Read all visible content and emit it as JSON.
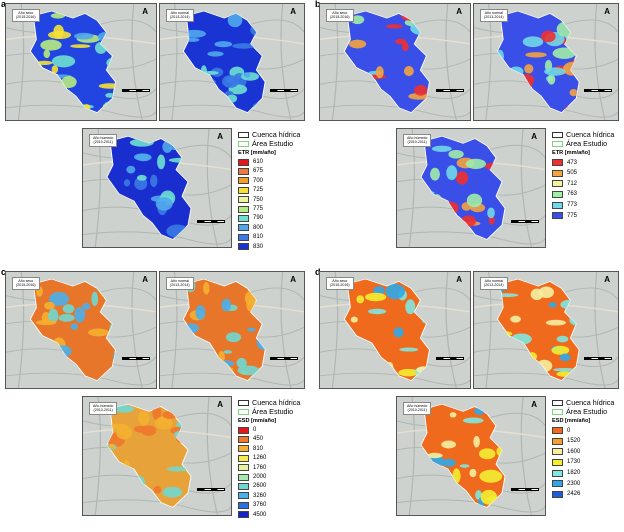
{
  "panels": [
    {
      "letter": "a",
      "legend": {
        "outline_label": "Cuenca hídrica",
        "area_label": "Área Estudio",
        "title": "ETR [mm/año]",
        "classes": [
          {
            "value": "610",
            "color": "#e8141c"
          },
          {
            "value": "675",
            "color": "#f0783c"
          },
          {
            "value": "700",
            "color": "#f4a028"
          },
          {
            "value": "725",
            "color": "#f6e234"
          },
          {
            "value": "750",
            "color": "#ecf5a0"
          },
          {
            "value": "775",
            "color": "#b6ec80"
          },
          {
            "value": "790",
            "color": "#6ee0d0"
          },
          {
            "value": "800",
            "color": "#50a8ec"
          },
          {
            "value": "810",
            "color": "#3a7ae4"
          },
          {
            "value": "830",
            "color": "#1434d6"
          }
        ]
      },
      "maps": [
        {
          "label_line1": "Año seco",
          "label_line2": "(2015-2016)"
        },
        {
          "label_line1": "Año normal",
          "label_line2": "(2013-2014)"
        },
        {
          "label_line1": "Año húmedo",
          "label_line2": "(2010-2011)"
        }
      ]
    },
    {
      "letter": "b",
      "legend": {
        "outline_label": "Cuenca hídrica",
        "area_label": "Área Estudio",
        "title": "ETR [mm/año]",
        "classes": [
          {
            "value": "473",
            "color": "#ee3030"
          },
          {
            "value": "505",
            "color": "#f4a440"
          },
          {
            "value": "712",
            "color": "#f6f2a0"
          },
          {
            "value": "763",
            "color": "#a0eca8"
          },
          {
            "value": "773",
            "color": "#70d8e8"
          },
          {
            "value": "775",
            "color": "#3a4ee8"
          }
        ]
      },
      "maps": [
        {
          "label_line1": "Año seco",
          "label_line2": "(2015-2016)"
        },
        {
          "label_line1": "Año normal",
          "label_line2": "(2013-2014)"
        },
        {
          "label_line1": "Año húmedo",
          "label_line2": "(2010-2011)"
        }
      ]
    },
    {
      "letter": "c",
      "legend": {
        "outline_label": "Cuenca hídrica",
        "area_label": "Área Estudio",
        "title": "ESD [mm/año]",
        "classes": [
          {
            "value": "0",
            "color": "#e8141c"
          },
          {
            "value": "450",
            "color": "#f0782c"
          },
          {
            "value": "810",
            "color": "#f4b030"
          },
          {
            "value": "1260",
            "color": "#f6ec50"
          },
          {
            "value": "1760",
            "color": "#e6f4a0"
          },
          {
            "value": "2000",
            "color": "#a4eab0"
          },
          {
            "value": "2600",
            "color": "#70d8d0"
          },
          {
            "value": "3260",
            "color": "#4ab0ec"
          },
          {
            "value": "3760",
            "color": "#2a70e0"
          },
          {
            "value": "4500",
            "color": "#1424c8"
          }
        ]
      },
      "maps": [
        {
          "label_line1": "Año seco",
          "label_line2": "(2015-2016)"
        },
        {
          "label_line1": "Año normal",
          "label_line2": "(2013-2014)"
        },
        {
          "label_line1": "Año húmedo",
          "label_line2": "(2010-2011)"
        }
      ]
    },
    {
      "letter": "d",
      "legend": {
        "outline_label": "Cuenca hídrica",
        "area_label": "Área Estudio",
        "title": "ESD [mm/año]",
        "classes": [
          {
            "value": "0",
            "color": "#f06a1e"
          },
          {
            "value": "1520",
            "color": "#f4a030"
          },
          {
            "value": "1600",
            "color": "#f6f0a0"
          },
          {
            "value": "1730",
            "color": "#f2ee30"
          },
          {
            "value": "1820",
            "color": "#80e8e0"
          },
          {
            "value": "2300",
            "color": "#30a8e8"
          },
          {
            "value": "2426",
            "color": "#1e5ed8"
          }
        ]
      },
      "maps": [
        {
          "label_line1": "Año seco",
          "label_line2": "(2015-2016)"
        },
        {
          "label_line1": "Año normal",
          "label_line2": "(2013-2014)"
        },
        {
          "label_line1": "Año húmedo",
          "label_line2": "(2010-2011)"
        }
      ]
    }
  ],
  "north_symbol": "A",
  "map_fill_styles": {
    "a": [
      "#2244e0",
      "#1a34d4",
      "#1a2ed0"
    ],
    "b": [
      "#3a4ee8",
      "#3a4ee8",
      "#3a4ee8"
    ],
    "c": [
      "#e8762a",
      "#e8762a",
      "#e8a23a"
    ],
    "d": [
      "#f06a1e",
      "#f06a1e",
      "#f06a1e"
    ]
  }
}
